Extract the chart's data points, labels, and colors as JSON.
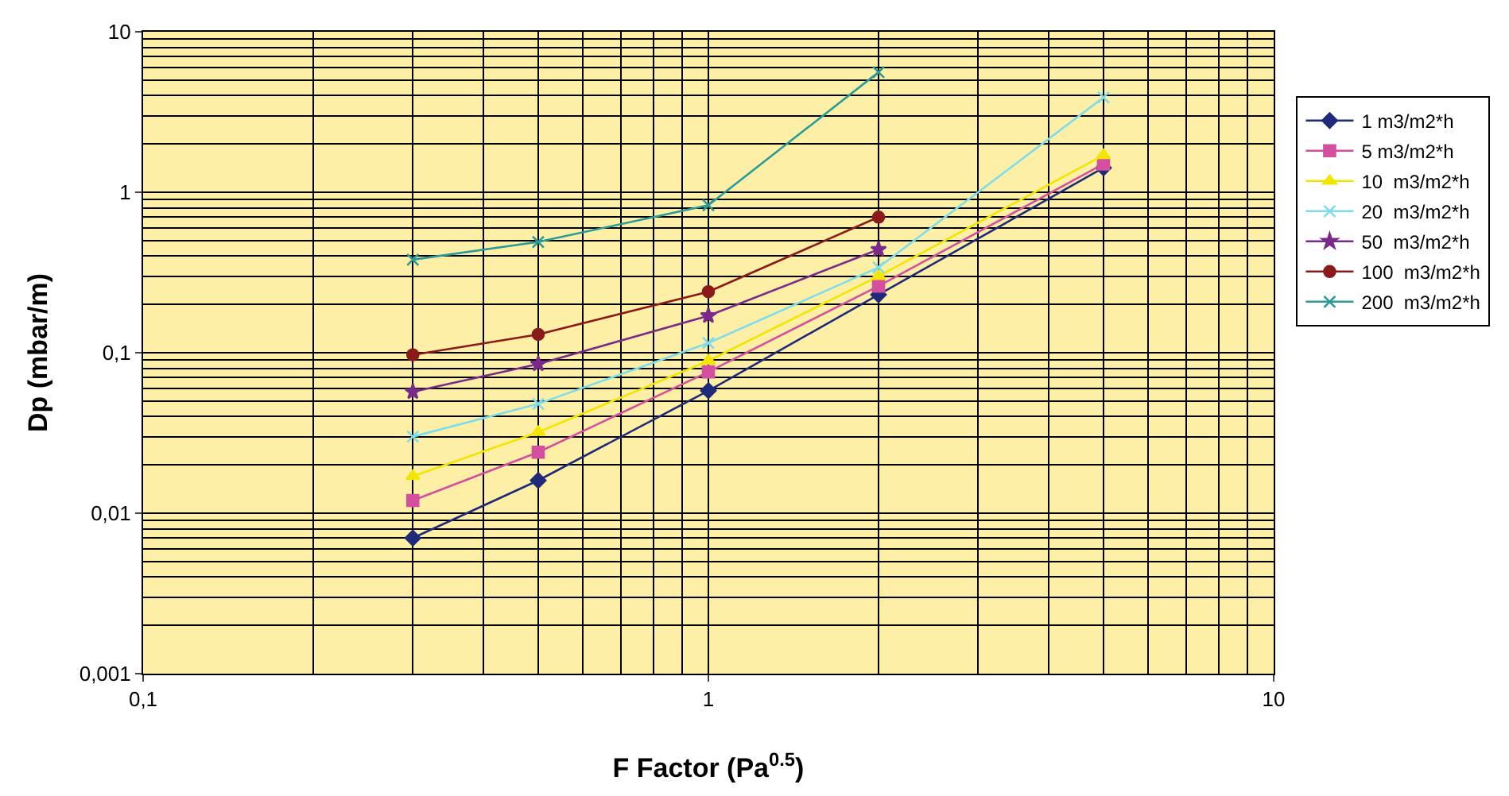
{
  "chart_data": {
    "type": "line",
    "xlabel": "F Factor (Pa$^{0.5}$)",
    "ylabel": "Dp (mbar/m)",
    "log": "xy",
    "grid": true,
    "legend": "right",
    "line_style": "solid",
    "xlim": [
      0.1,
      10
    ],
    "ylim": [
      0.001,
      10
    ],
    "xticks": [
      {
        "value": 0.1,
        "label": "0,1"
      },
      1,
      10
    ],
    "yticks": [
      {
        "value": 0.001,
        "label": "0,001"
      },
      {
        "value": 0.01,
        "label": "0,01"
      },
      {
        "value": 0.1,
        "label": "0,1"
      },
      1,
      10
    ],
    "x": [
      0.3,
      0.5,
      1,
      2,
      5
    ],
    "series": [
      {
        "name": "1 m3/m2*h",
        "color": "#1f2a7a",
        "marker": "diamond",
        "values": [
          0.007,
          0.016,
          0.058,
          0.23,
          1.42
        ]
      },
      {
        "name": "5 m3/m2*h",
        "color": "#d44fa0",
        "marker": "square",
        "values": [
          0.012,
          0.024,
          0.076,
          0.26,
          1.5
        ]
      },
      {
        "name": "10  m3/m2*h",
        "color": "#f2e600",
        "marker": "triangle",
        "values": [
          0.017,
          0.032,
          0.089,
          0.3,
          1.7
        ]
      },
      {
        "name": "20  m3/m2*h",
        "color": "#7fdcec",
        "marker": "cross",
        "values": [
          0.03,
          0.048,
          0.115,
          0.34,
          3.9
        ]
      },
      {
        "name": "50  m3/m2*h",
        "color": "#7a2a8a",
        "marker": "star",
        "values": [
          0.057,
          0.085,
          0.17,
          0.44,
          null
        ]
      },
      {
        "name": "100  m3/m2*h",
        "color": "#8b1a1a",
        "marker": "circle",
        "values": [
          0.097,
          0.13,
          0.24,
          0.7,
          null
        ]
      },
      {
        "name": "200  m3/m2*h",
        "color": "#2a9a9a",
        "marker": "cross",
        "values": [
          0.38,
          0.49,
          0.83,
          5.6,
          null
        ]
      }
    ]
  }
}
